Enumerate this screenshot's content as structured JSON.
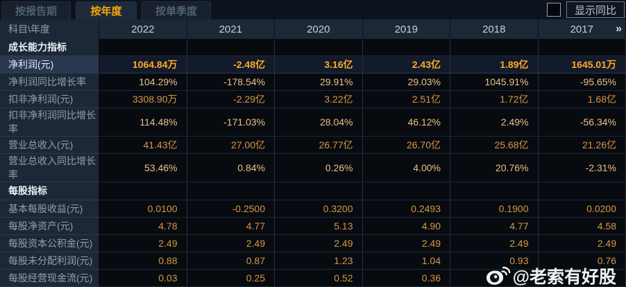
{
  "tabs": [
    {
      "label": "按报告期",
      "active": false
    },
    {
      "label": "按年度",
      "active": true
    },
    {
      "label": "按单季度",
      "active": false
    }
  ],
  "controls": {
    "show_yoy_label": "显示同比"
  },
  "table": {
    "corner_label": "科目\\年度",
    "years": [
      "2022",
      "2021",
      "2020",
      "2019",
      "2018",
      "2017"
    ],
    "more_icon": "»",
    "rows": [
      {
        "type": "section",
        "label": "成长能力指标",
        "values": [
          "",
          "",
          "",
          "",
          "",
          ""
        ]
      },
      {
        "type": "data",
        "highlight": true,
        "label": "净利润(元)",
        "values": [
          "1064.84万",
          "-2.48亿",
          "3.16亿",
          "2.43亿",
          "1.89亿",
          "1645.01万"
        ]
      },
      {
        "type": "data",
        "label": "净利润同比增长率",
        "values": [
          "104.29%",
          "-178.54%",
          "29.91%",
          "29.03%",
          "1045.91%",
          "-95.65%"
        ]
      },
      {
        "type": "data",
        "label": "扣非净利润(元)",
        "values": [
          "3308.90万",
          "-2.29亿",
          "3.22亿",
          "2.51亿",
          "1.72亿",
          "1.68亿"
        ]
      },
      {
        "type": "data",
        "label": "扣非净利润同比增长率",
        "values": [
          "114.48%",
          "-171.03%",
          "28.04%",
          "46.12%",
          "2.49%",
          "-56.34%"
        ]
      },
      {
        "type": "data",
        "label": "营业总收入(元)",
        "values": [
          "41.43亿",
          "27.00亿",
          "26.77亿",
          "26.70亿",
          "25.68亿",
          "21.26亿"
        ]
      },
      {
        "type": "data",
        "label": "营业总收入同比增长率",
        "values": [
          "53.46%",
          "0.84%",
          "0.26%",
          "4.00%",
          "20.76%",
          "-2.31%"
        ]
      },
      {
        "type": "section",
        "label": "每股指标",
        "values": [
          "",
          "",
          "",
          "",
          "",
          ""
        ]
      },
      {
        "type": "data",
        "label": "基本每股收益(元)",
        "values": [
          "0.0100",
          "-0.2500",
          "0.3200",
          "0.2493",
          "0.1900",
          "0.0200"
        ]
      },
      {
        "type": "data",
        "label": "每股净资产(元)",
        "values": [
          "4.78",
          "4.77",
          "5.13",
          "4.90",
          "4.77",
          "4.58"
        ]
      },
      {
        "type": "data",
        "label": "每股资本公积金(元)",
        "values": [
          "2.49",
          "2.49",
          "2.49",
          "2.49",
          "2.49",
          "2.49"
        ]
      },
      {
        "type": "data",
        "label": "每股未分配利润(元)",
        "values": [
          "0.88",
          "0.87",
          "1.23",
          "1.04",
          "0.93",
          "0.76"
        ]
      },
      {
        "type": "data",
        "label": "每股经营现金流(元)",
        "values": [
          "0.03",
          "0.25",
          "0.52",
          "0.36",
          "",
          ""
        ]
      }
    ]
  },
  "watermark": {
    "handle": "@老索有好股",
    "icon": "weibo-icon"
  },
  "colors": {
    "accent": "#f7ab00",
    "value": "#db9642",
    "value_strong": "#ffab26",
    "pct": "#eec088"
  }
}
